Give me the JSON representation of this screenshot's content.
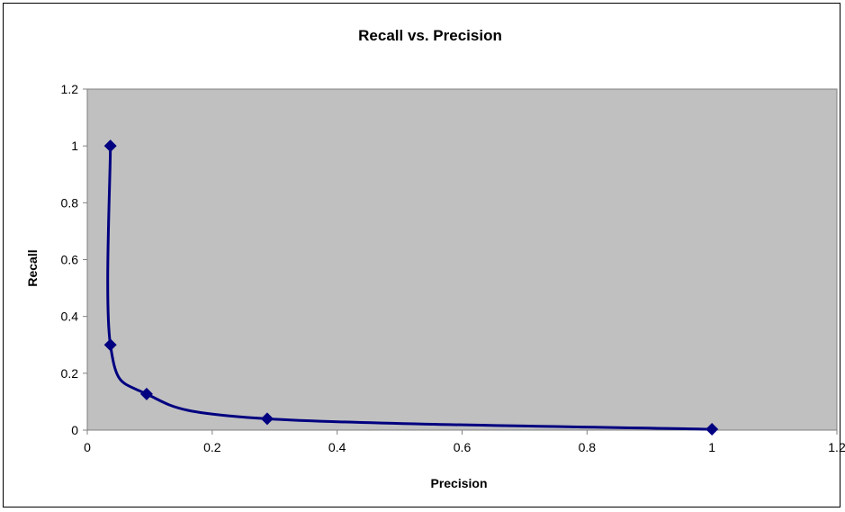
{
  "chart_data": {
    "type": "scatter",
    "title": "Recall vs. Precision",
    "xlabel": "Precision",
    "ylabel": "Recall",
    "xlim": [
      0,
      1.2
    ],
    "ylim": [
      0,
      1.2
    ],
    "x_ticks": [
      0,
      0.2,
      0.4,
      0.6,
      0.8,
      1,
      1.2
    ],
    "y_ticks": [
      0,
      0.2,
      0.4,
      0.6,
      0.8,
      1,
      1.2
    ],
    "x_tick_labels": [
      "0",
      "0.2",
      "0.4",
      "0.6",
      "0.8",
      "1",
      "1.2"
    ],
    "y_tick_labels": [
      "0",
      "0.2",
      "0.4",
      "0.6",
      "0.8",
      "1",
      "1.2"
    ],
    "grid": false,
    "legend": "none",
    "smooth_line": true,
    "marker": "diamond",
    "colors": {
      "series": "#000080",
      "plot_area": "#c0c0c0",
      "axes": "#808080"
    },
    "series": [
      {
        "x": [
          0.037,
          0.037,
          0.095,
          0.288,
          1.0
        ],
        "y": [
          1.0,
          0.3,
          0.127,
          0.04,
          0.003
        ]
      }
    ]
  }
}
